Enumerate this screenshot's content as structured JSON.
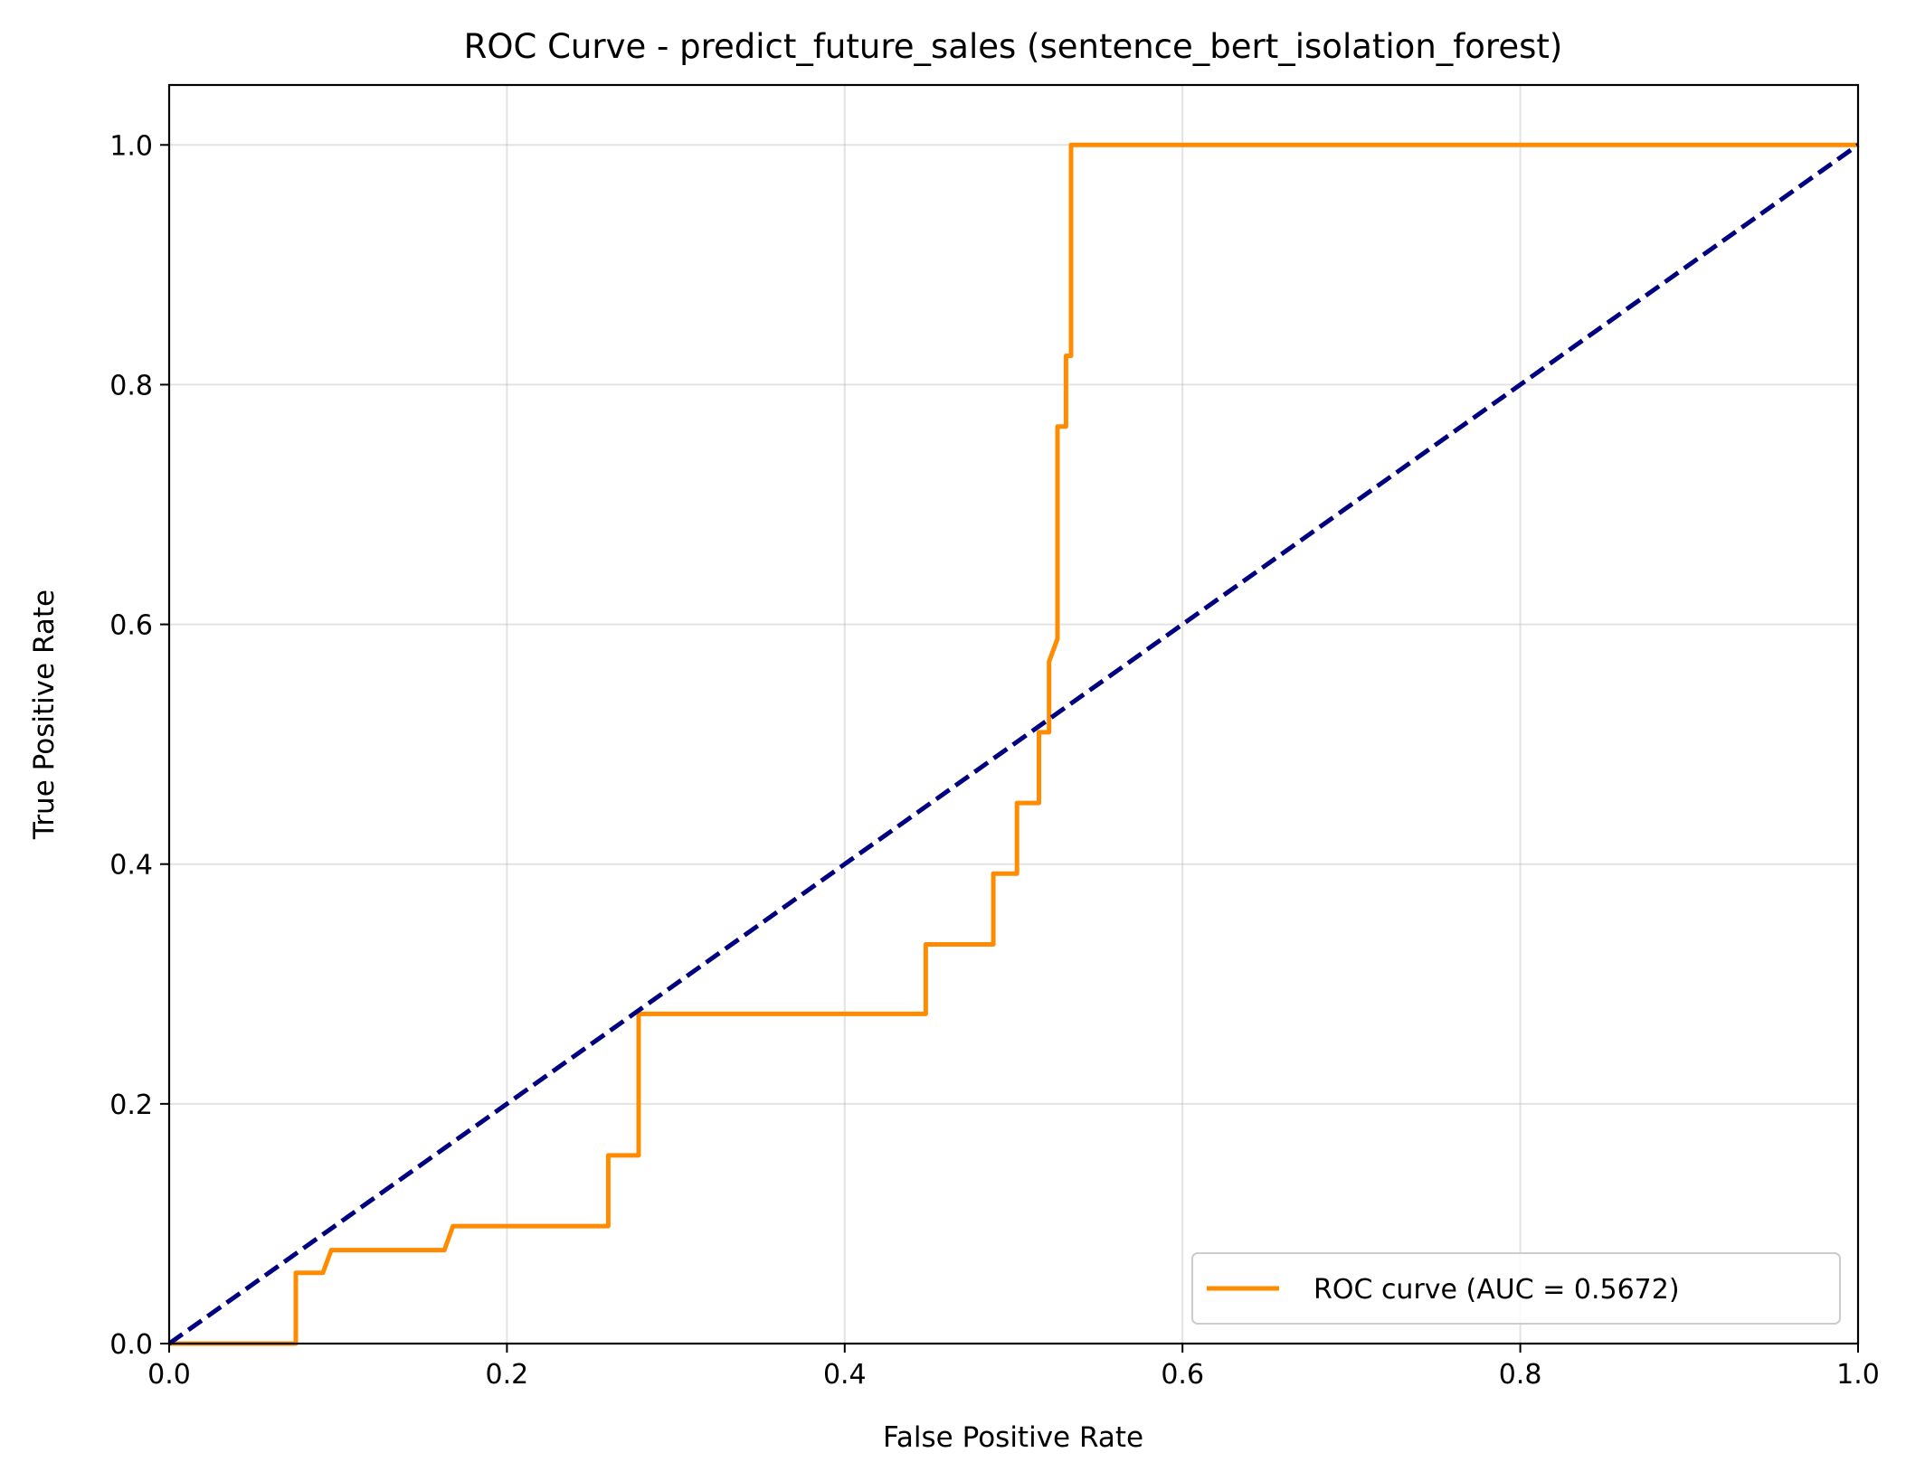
{
  "chart_data": {
    "type": "line",
    "title": "ROC Curve - predict_future_sales (sentence_bert_isolation_forest)",
    "xlabel": "False Positive Rate",
    "ylabel": "True Positive Rate",
    "xlim": [
      0.0,
      1.0
    ],
    "ylim": [
      0.0,
      1.05
    ],
    "xticks": [
      0.0,
      0.2,
      0.4,
      0.6,
      0.8,
      1.0
    ],
    "yticks": [
      0.0,
      0.2,
      0.4,
      0.6,
      0.8,
      1.0
    ],
    "xtick_labels": [
      "0.0",
      "0.2",
      "0.4",
      "0.6",
      "0.8",
      "1.0"
    ],
    "ytick_labels": [
      "0.0",
      "0.2",
      "0.4",
      "0.6",
      "0.8",
      "1.0"
    ],
    "grid": true,
    "legend_position": "lower-right",
    "series": [
      {
        "name": "ROC curve (AUC = 0.5672)",
        "color": "#ff8c00",
        "style": "solid",
        "x": [
          0.0,
          0.075,
          0.075,
          0.091,
          0.096,
          0.163,
          0.168,
          0.26,
          0.26,
          0.278,
          0.278,
          0.448,
          0.448,
          0.488,
          0.488,
          0.502,
          0.502,
          0.515,
          0.515,
          0.521,
          0.521,
          0.526,
          0.526,
          0.526,
          0.531,
          0.531,
          0.534,
          0.534,
          1.0
        ],
        "y": [
          0.0,
          0.0,
          0.059,
          0.059,
          0.078,
          0.078,
          0.098,
          0.098,
          0.157,
          0.157,
          0.275,
          0.275,
          0.333,
          0.333,
          0.392,
          0.392,
          0.451,
          0.451,
          0.51,
          0.51,
          0.569,
          0.588,
          0.588,
          0.765,
          0.765,
          0.824,
          0.824,
          1.0,
          1.0
        ]
      },
      {
        "name": "",
        "color": "#000080",
        "style": "dashed",
        "x": [
          0.0,
          1.0
        ],
        "y": [
          0.0,
          1.0
        ]
      }
    ]
  }
}
